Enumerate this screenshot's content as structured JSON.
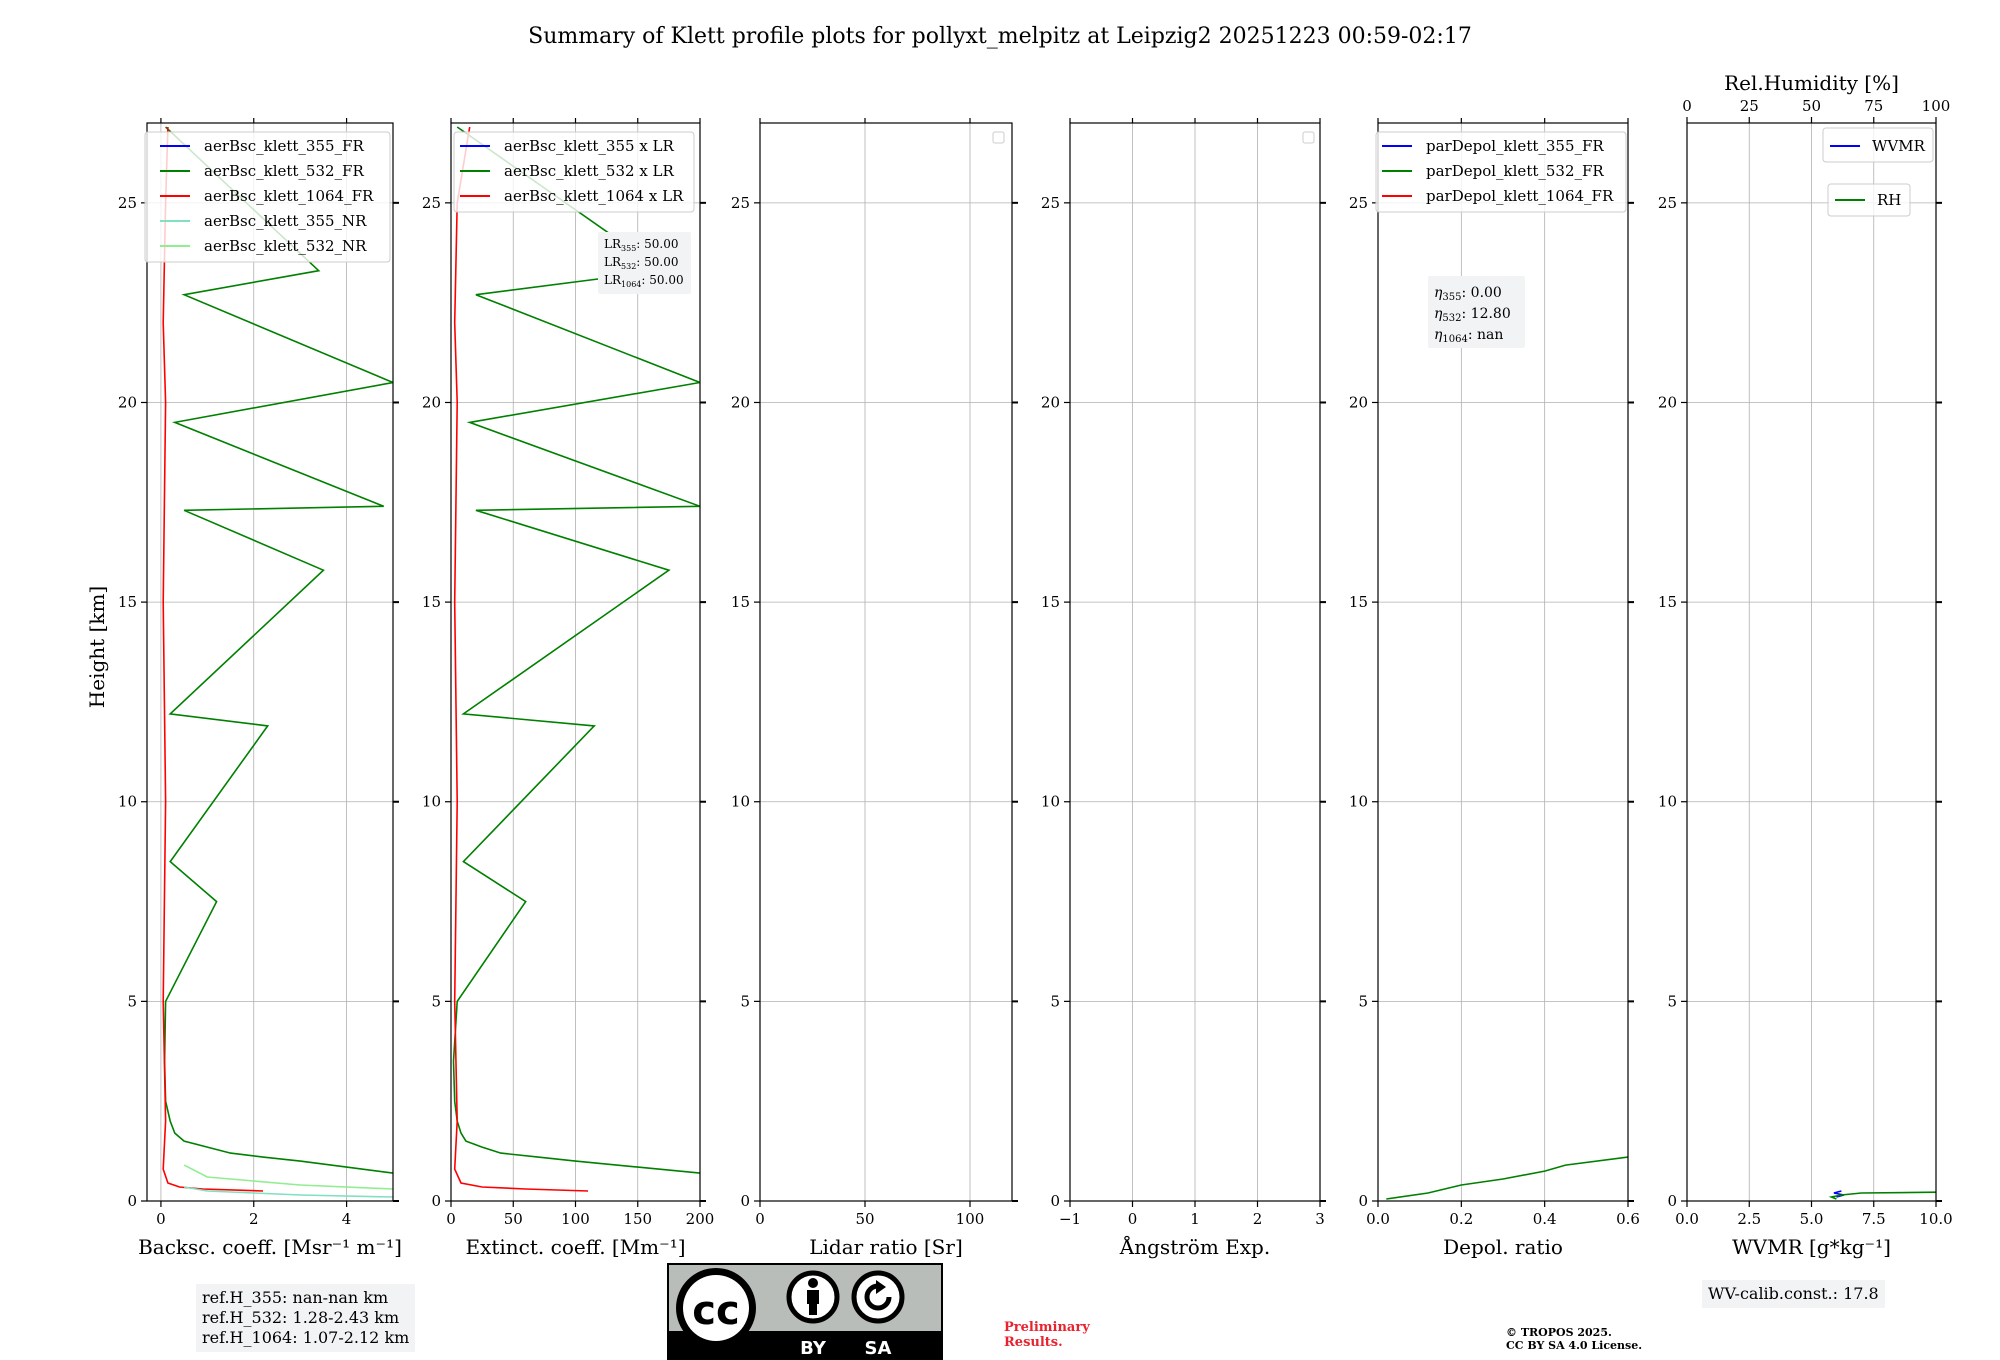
{
  "title": "Summary of Klett profile plots for pollyxt_melpitz at Leipzig2 20251223 00:59-02:17",
  "colors": {
    "c355": "#0000ff",
    "c532": "#008000",
    "c1064": "#ff0000",
    "nr355": "#80e0c0",
    "nr532": "#90ee90"
  },
  "ref_info": {
    "h355": "ref.H_355: nan-nan km",
    "h532": "ref.H_532: 1.28-2.43 km",
    "h1064": "ref.H_1064: 1.07-2.12 km"
  },
  "lidar_ratio_box": {
    "lr355": "50.00",
    "lr532": "50.00",
    "lr1064": "50.00"
  },
  "eta_box": {
    "e355": "0.00",
    "e532": "12.80",
    "e1064": "nan"
  },
  "wv_calib": "WV-calib.const.: 17.8",
  "preliminary": [
    "Preliminary",
    "Results."
  ],
  "copyright": [
    "© TROPOS 2025.",
    "CC BY SA 4.0 License."
  ],
  "license_badge": {
    "by": "BY",
    "sa": "SA"
  },
  "chart_data": [
    {
      "type": "line",
      "xlabel": "Backsc. coeff. [Msr⁻¹ m⁻¹]",
      "ylabel": "Height [km]",
      "xlim": [
        -0.3,
        5
      ],
      "ylim": [
        0,
        27
      ],
      "xticks": [
        0,
        2,
        4
      ],
      "yticks": [
        0,
        5,
        10,
        15,
        20,
        25
      ],
      "legend": [
        "aerBsc_klett_355_FR",
        "aerBsc_klett_532_FR",
        "aerBsc_klett_1064_FR",
        "aerBsc_klett_355_NR",
        "aerBsc_klett_532_NR"
      ],
      "legend_position": "top-right",
      "series": [
        {
          "name": "aerBsc_klett_532_FR",
          "color": "#008000",
          "x": [
            5.0,
            4.0,
            3.0,
            2.2,
            1.5,
            1.0,
            0.5,
            0.3,
            0.2,
            0.1,
            0.08,
            0.1,
            1.2,
            0.2,
            2.3,
            0.2,
            3.5,
            0.5,
            4.8,
            0.3,
            5.0,
            0.5,
            3.4,
            0.1
          ],
          "y": [
            0.7,
            0.85,
            1.0,
            1.1,
            1.2,
            1.35,
            1.5,
            1.7,
            2.0,
            2.5,
            3.5,
            5.0,
            7.5,
            8.5,
            11.9,
            12.2,
            15.8,
            17.3,
            17.4,
            19.5,
            20.5,
            22.7,
            23.3,
            26.9
          ]
        },
        {
          "name": "aerBsc_klett_1064_FR",
          "color": "#ff0000",
          "x": [
            2.2,
            0.9,
            0.4,
            0.15,
            0.05,
            0.1,
            0.05,
            0.1,
            0.05,
            0.1,
            0.05,
            0.1,
            0.15
          ],
          "y": [
            0.25,
            0.3,
            0.35,
            0.45,
            0.8,
            2.0,
            5.0,
            10.0,
            15.0,
            20.0,
            22.0,
            25.0,
            26.9
          ]
        },
        {
          "name": "aerBsc_klett_355_NR",
          "color": "#80e0c0",
          "x": [
            5.0,
            3.0,
            2.0,
            1.0,
            0.5
          ],
          "y": [
            0.1,
            0.15,
            0.2,
            0.25,
            0.35
          ]
        },
        {
          "name": "aerBsc_klett_532_NR",
          "color": "#90ee90",
          "x": [
            5.0,
            3.0,
            2.0,
            1.0,
            0.5
          ],
          "y": [
            0.3,
            0.4,
            0.5,
            0.6,
            0.9
          ]
        }
      ]
    },
    {
      "type": "line",
      "xlabel": "Extinct. coeff. [Mm⁻¹]",
      "xlim": [
        0,
        200
      ],
      "ylim": [
        0,
        27
      ],
      "xticks": [
        0,
        50,
        100,
        150,
        200
      ],
      "yticks": [
        0,
        5,
        10,
        15,
        20,
        25
      ],
      "legend": [
        "aerBsc_klett_355 x LR",
        "aerBsc_klett_532 x LR",
        "aerBsc_klett_1064 x LR"
      ],
      "legend_position": "top-right",
      "series": [
        {
          "name": "aerBsc_klett_532 x LR",
          "color": "#008000",
          "x": [
            200,
            150,
            100,
            70,
            40,
            25,
            12,
            8,
            5,
            3,
            2,
            5,
            60,
            10,
            115,
            10,
            175,
            20,
            200,
            15,
            200,
            20,
            170,
            5
          ],
          "y": [
            0.7,
            0.85,
            1.0,
            1.1,
            1.2,
            1.35,
            1.5,
            1.7,
            2.0,
            2.5,
            3.5,
            5.0,
            7.5,
            8.5,
            11.9,
            12.2,
            15.8,
            17.3,
            17.4,
            19.5,
            20.5,
            22.7,
            23.3,
            26.9
          ]
        },
        {
          "name": "aerBsc_klett_1064 x LR",
          "color": "#ff0000",
          "x": [
            110,
            60,
            25,
            8,
            3,
            5,
            3,
            5,
            3,
            5,
            3,
            5,
            15
          ],
          "y": [
            0.25,
            0.3,
            0.35,
            0.45,
            0.8,
            2.0,
            5.0,
            10.0,
            15.0,
            20.0,
            22.0,
            25.0,
            26.9
          ]
        }
      ]
    },
    {
      "type": "line",
      "xlabel": "Lidar ratio [Sr]",
      "xlim": [
        0,
        120
      ],
      "ylim": [
        0,
        27
      ],
      "xticks": [
        0,
        50,
        100
      ],
      "yticks": [
        0,
        5,
        10,
        15,
        20,
        25
      ],
      "series": []
    },
    {
      "type": "line",
      "xlabel": "Ångström Exp.",
      "xlim": [
        -1,
        3
      ],
      "ylim": [
        0,
        27
      ],
      "xticks": [
        -1,
        0,
        1,
        2,
        3
      ],
      "yticks": [
        0,
        5,
        10,
        15,
        20,
        25
      ],
      "series": []
    },
    {
      "type": "line",
      "xlabel": "Depol. ratio",
      "xlim": [
        0,
        0.6
      ],
      "ylim": [
        0,
        27
      ],
      "xticks": [
        0.0,
        0.2,
        0.4,
        0.6
      ],
      "yticks": [
        0,
        5,
        10,
        15,
        20,
        25
      ],
      "legend": [
        "parDepol_klett_355_FR",
        "parDepol_klett_532_FR",
        "parDepol_klett_1064_FR"
      ],
      "legend_position": "top-right",
      "series": [
        {
          "name": "parDepol_klett_532_FR",
          "color": "#008000",
          "x": [
            0.02,
            0.12,
            0.2,
            0.3,
            0.4,
            0.45,
            0.6
          ],
          "y": [
            0.05,
            0.2,
            0.4,
            0.55,
            0.75,
            0.9,
            1.1
          ]
        }
      ]
    },
    {
      "type": "line",
      "xlabel": "WVMR [g*kg⁻¹]",
      "xlabel_top": "Rel.Humidity [%]",
      "xlim": [
        0,
        10
      ],
      "xlim_top": [
        0,
        100
      ],
      "ylim": [
        0,
        27
      ],
      "xticks": [
        0.0,
        2.5,
        5.0,
        7.5,
        10.0
      ],
      "xticks_top": [
        0,
        25,
        50,
        75,
        100
      ],
      "yticks": [
        0,
        5,
        10,
        15,
        20,
        25
      ],
      "legend": [
        "WVMR",
        "RH"
      ],
      "legend_position": "top-right",
      "series": [
        {
          "name": "WVMR",
          "color": "#0000ff",
          "x": [
            6.0,
            6.3,
            5.9,
            6.2
          ],
          "y": [
            0.1,
            0.15,
            0.2,
            0.25
          ]
        },
        {
          "name": "RH",
          "color": "#008000",
          "x": [
            100,
            70,
            62,
            58,
            60
          ],
          "y": [
            0.22,
            0.2,
            0.15,
            0.1,
            0.05
          ]
        }
      ]
    }
  ]
}
